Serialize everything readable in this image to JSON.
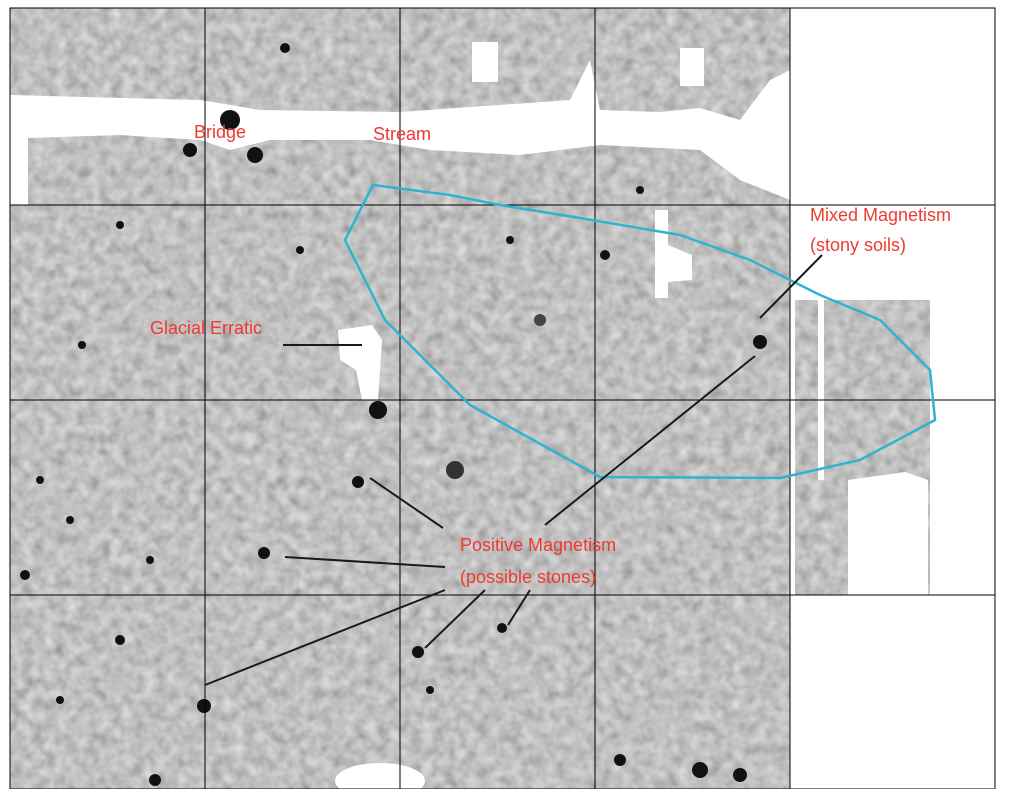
{
  "annotations": {
    "bridge": "Bridge",
    "stream": "Stream",
    "glacial_erratic": "Glacial Erratic",
    "mixed_magnetism": [
      "Mixed Magnetism",
      "(stony soils)"
    ],
    "positive_magnetism": [
      "Positive Magnetism",
      "(possible stones)"
    ]
  }
}
